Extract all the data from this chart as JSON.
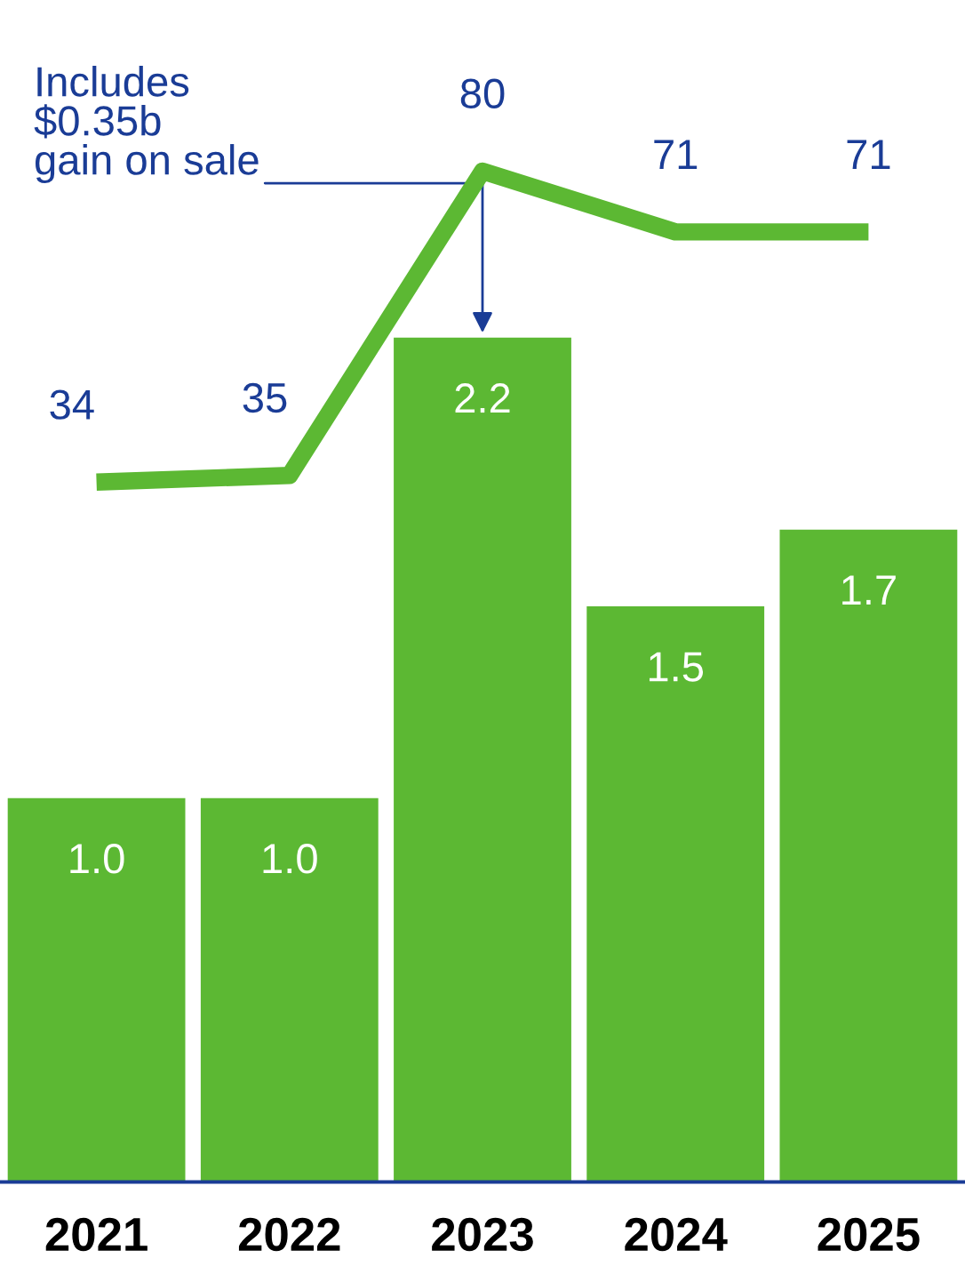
{
  "chart_data": {
    "type": "bar",
    "categories": [
      "2021",
      "2022",
      "2023",
      "2024",
      "2025"
    ],
    "series": [
      {
        "color": "#5cb833",
        "values": [
          1.0,
          1.0,
          2.2,
          1.5,
          1.7
        ],
        "value_labels": [
          "1.0",
          "1.0",
          "2.2",
          "1.5",
          "1.7"
        ]
      },
      {
        "type": "line",
        "axis": "y2",
        "color": "#5cb833",
        "values": [
          34,
          35,
          80,
          71,
          71
        ],
        "value_labels": [
          "34",
          "35",
          "80",
          "71",
          "71"
        ]
      }
    ],
    "tick_labels": "x",
    "grid": false,
    "legend": false,
    "marker": "none",
    "line_style": "solid",
    "annotations": [
      {
        "text": "Includes\n$0.35b\ngain on sale",
        "x": "2023",
        "y": 2.2
      }
    ]
  }
}
